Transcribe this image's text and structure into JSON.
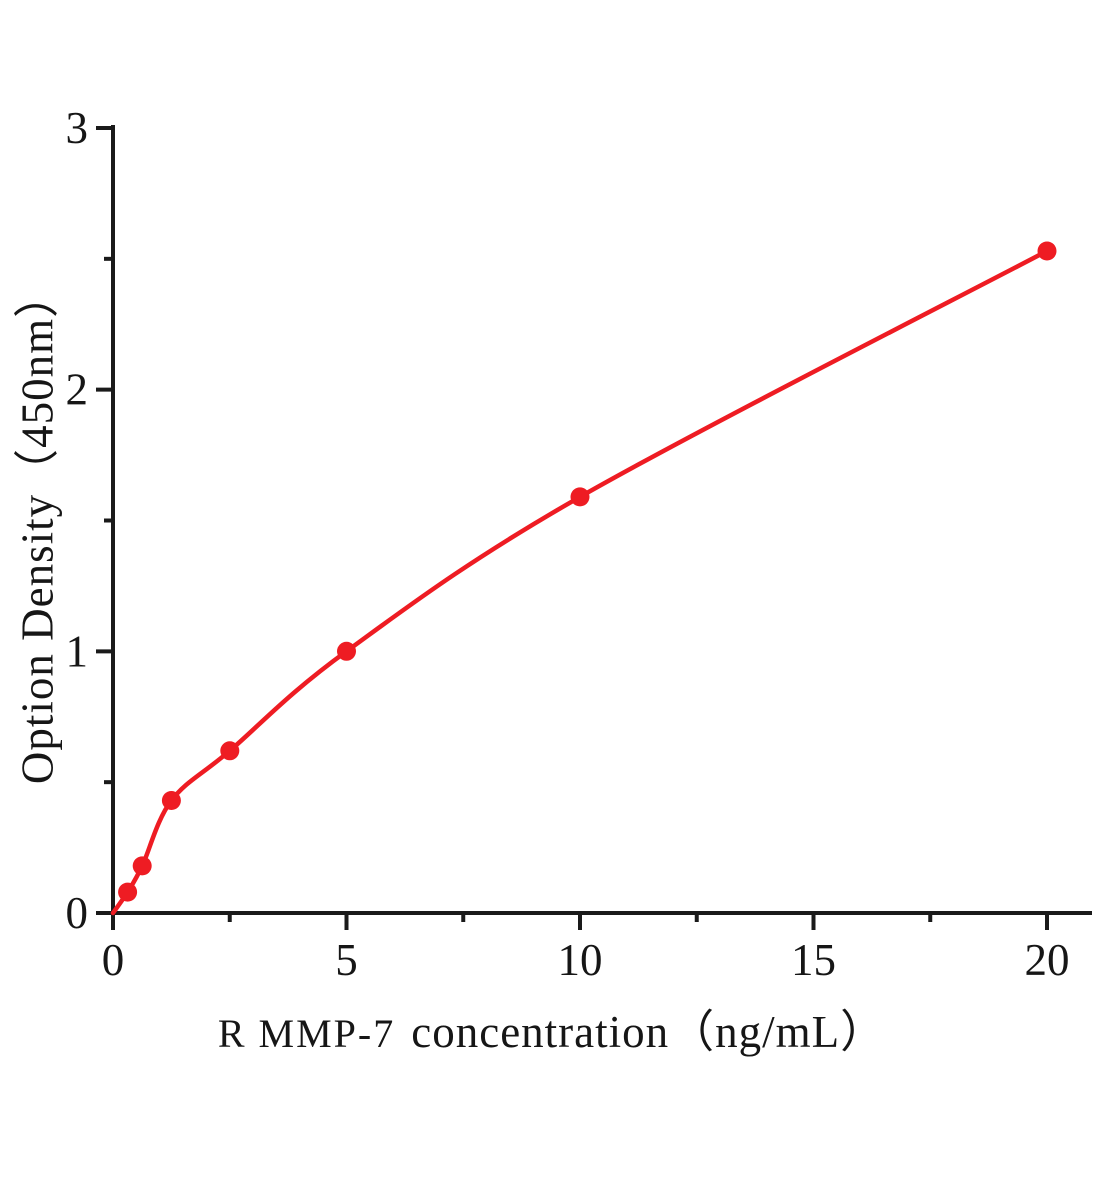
{
  "chart_data": {
    "type": "scatter",
    "title": "",
    "xlabel": "R MMP-7 concentration（ng/mL）",
    "xlabel_prefix": "R MMP-7",
    "xlabel_main": "concentration（ng/mL）",
    "ylabel": "Option Density（450nm）",
    "x": [
      0.312,
      0.625,
      1.25,
      2.5,
      5,
      10,
      20
    ],
    "y": [
      0.08,
      0.18,
      0.43,
      0.62,
      1.0,
      1.59,
      2.53
    ],
    "curve_start": [
      0,
      0
    ],
    "xlim": [
      0,
      21
    ],
    "ylim": [
      0,
      3
    ],
    "x_major_ticks": [
      0,
      5,
      10,
      15,
      20
    ],
    "x_minor_ticks": [
      2.5,
      7.5,
      12.5,
      17.5
    ],
    "y_major_ticks": [
      0,
      1,
      2,
      3
    ],
    "y_minor_ticks": [
      0.5,
      1.5,
      2.5
    ],
    "grid": false,
    "legend": "none",
    "line_color": "#ee1c23",
    "marker_color": "#ee1c23",
    "axis_color": "#1a1a1a",
    "background": "#ffffff"
  }
}
